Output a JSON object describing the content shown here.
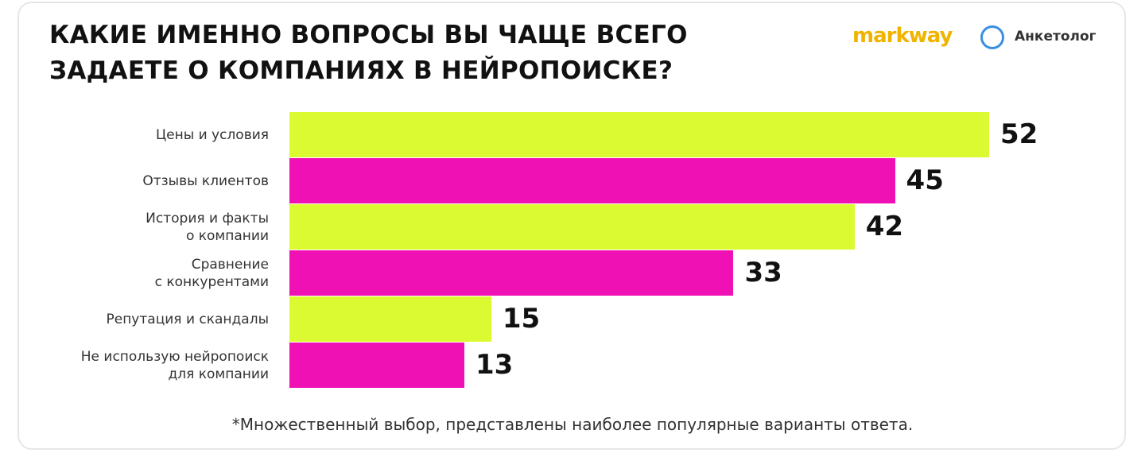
{
  "chart_data": {
    "type": "bar",
    "orientation": "horizontal",
    "title": "КАКИЕ ИМЕННО ВОПРОСЫ ВЫ ЧАЩЕ ВСЕГО\nЗАДАЕТЕ О КОМПАНИЯХ В НЕЙРОПОИСКЕ?",
    "categories": [
      "Цены и условия",
      "Отзывы клиентов",
      "История и факты\nо компании",
      "Сравнение\nс конкурентами",
      "Репутация и скандалы",
      "Не использую нейропоиск\nдля компании"
    ],
    "values": [
      52,
      45,
      42,
      33,
      15,
      13
    ],
    "colors": [
      "#dcfa32",
      "#f011b5",
      "#dcfa32",
      "#f011b5",
      "#dcfa32",
      "#f011b5"
    ],
    "footnote": "*Множественный выбор, представлены наиболее популярные варианты ответа.",
    "logos": [
      "markway",
      "Анкетолог"
    ]
  }
}
